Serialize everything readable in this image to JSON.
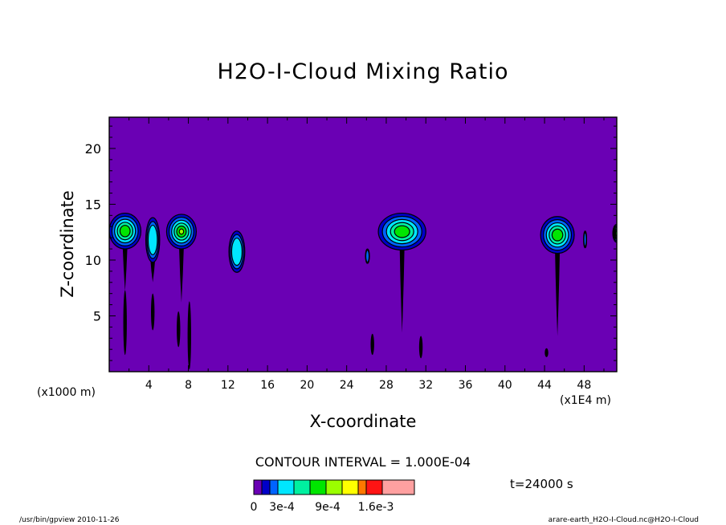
{
  "chart_data": {
    "type": "contour",
    "title": "H2O-I-Cloud Mixing Ratio",
    "xlabel": "X-coordinate",
    "ylabel": "Z-coordinate",
    "x_unit_left": "(x1000 m)",
    "x_unit_right": "(x1E4 m)",
    "xlim": [
      0,
      51.3
    ],
    "ylim": [
      0,
      22.8
    ],
    "x_ticks": [
      "4",
      "8",
      "12",
      "16",
      "20",
      "24",
      "28",
      "32",
      "36",
      "40",
      "44",
      "48"
    ],
    "y_ticks": [
      "5",
      "10",
      "15",
      "20"
    ],
    "contour_interval": "CONTOUR INTERVAL = 1.000E-04",
    "time_label": "t=24000 s",
    "background_color": "#6a00b4",
    "colorbar": {
      "colors": [
        "#6a00b4",
        "#0000c8",
        "#0064ff",
        "#00e6ff",
        "#00f0a0",
        "#00e600",
        "#9bff00",
        "#ffff00",
        "#ff7800",
        "#ff1414",
        "#ffa0a0"
      ],
      "labels": [
        "0",
        "3e-4",
        "9e-4",
        "1.6e-3"
      ]
    },
    "clouds": [
      {
        "x": 1.6,
        "z": 12.5,
        "top": 14.2,
        "bottom": 11.0,
        "w": 3.2,
        "peak": 4,
        "stem_bottom": 7.2
      },
      {
        "x": 4.4,
        "z": 11.8,
        "top": 13.8,
        "bottom": 9.8,
        "w": 1.4,
        "peak": 2,
        "stem_bottom": 8.0
      },
      {
        "x": 7.3,
        "z": 12.4,
        "top": 14.1,
        "bottom": 11.0,
        "w": 3.0,
        "peak": 5,
        "stem_bottom": 6.2
      },
      {
        "x": 12.9,
        "z": 10.9,
        "top": 12.6,
        "bottom": 8.9,
        "w": 1.6,
        "peak": 2,
        "stem_bottom": 9.0
      },
      {
        "x": 26.1,
        "z": 10.4,
        "top": 11.0,
        "bottom": 9.7,
        "w": 0.4,
        "peak": 1,
        "stem_bottom": 10.0
      },
      {
        "x": 29.6,
        "z": 12.4,
        "top": 14.2,
        "bottom": 10.9,
        "w": 4.8,
        "peak": 4,
        "stem_bottom": 3.5
      },
      {
        "x": 45.3,
        "z": 12.1,
        "top": 13.9,
        "bottom": 10.6,
        "w": 3.4,
        "peak": 4,
        "stem_bottom": 3.2
      },
      {
        "x": 48.1,
        "z": 11.9,
        "top": 12.6,
        "bottom": 11.1,
        "w": 0.3,
        "peak": 1,
        "stem_bottom": 11.5
      },
      {
        "x": 51.3,
        "z": 12.4,
        "top": 13.2,
        "bottom": 11.6,
        "w": 0.8,
        "peak": 4,
        "stem_bottom": 12.0
      }
    ],
    "rain_shafts": [
      {
        "x": 1.6,
        "top": 7.3,
        "bottom": 1.5
      },
      {
        "x": 4.4,
        "top": 7.0,
        "bottom": 3.7
      },
      {
        "x": 7.0,
        "top": 5.4,
        "bottom": 2.2
      },
      {
        "x": 8.1,
        "top": 6.3,
        "bottom": 0.2
      },
      {
        "x": 26.6,
        "top": 3.4,
        "bottom": 1.5
      },
      {
        "x": 31.5,
        "top": 3.2,
        "bottom": 1.2
      },
      {
        "x": 44.2,
        "top": 2.1,
        "bottom": 1.3
      }
    ]
  },
  "footer": {
    "left": "/usr/bin/gpview  2010-11-26",
    "right": "arare-earth_H2O-I-Cloud.nc@H2O-I-Cloud"
  }
}
